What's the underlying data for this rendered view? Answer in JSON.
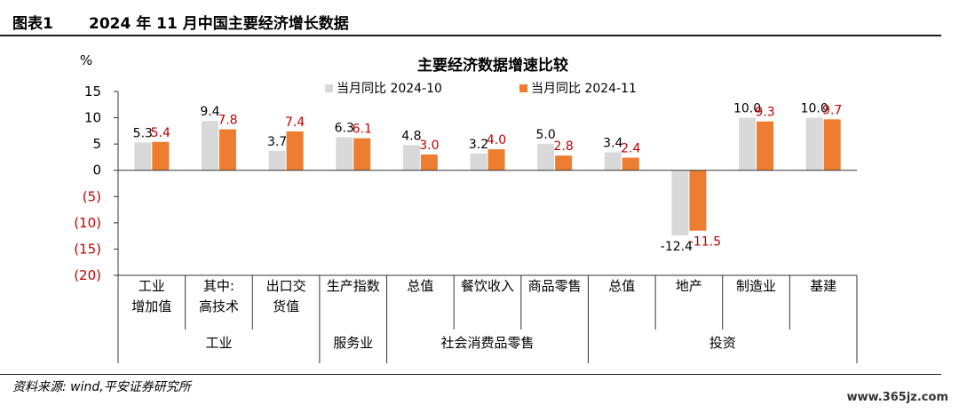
{
  "figure": {
    "label": "图表1",
    "title": "2024 年 11 月中国主要经济增长数据",
    "source": "资料来源: wind,平安证券研究所",
    "watermark": "www.365jz.com"
  },
  "chart_data": {
    "type": "bar",
    "title": "主要经济数据增速比较",
    "ylabel": "%",
    "ylim": [
      -20,
      15
    ],
    "yticks": [
      {
        "value": 15,
        "label": "15"
      },
      {
        "value": 10,
        "label": "10"
      },
      {
        "value": 5,
        "label": "5"
      },
      {
        "value": 0,
        "label": "0"
      },
      {
        "value": -5,
        "label": "(5)"
      },
      {
        "value": -10,
        "label": "(10)"
      },
      {
        "value": -15,
        "label": "(15)"
      },
      {
        "value": -20,
        "label": "(20)"
      }
    ],
    "categories": [
      "工业增加值",
      "其中:高技术",
      "出口交货值",
      "生产指数",
      "总值",
      "餐饮收入",
      "商品零售",
      "总值",
      "地产",
      "制造业",
      "基建"
    ],
    "category_lines": [
      [
        "工业",
        "增加值"
      ],
      [
        "其中:",
        "高技术"
      ],
      [
        "出口交",
        "货值"
      ],
      [
        "生产指数"
      ],
      [
        "总值"
      ],
      [
        "餐饮收入"
      ],
      [
        "商品零售"
      ],
      [
        "总值"
      ],
      [
        "地产"
      ],
      [
        "制造业"
      ],
      [
        "基建"
      ]
    ],
    "groups": [
      {
        "label": "工业",
        "start": 0,
        "end": 2
      },
      {
        "label": "服务业",
        "start": 3,
        "end": 3
      },
      {
        "label": "社会消费品零售",
        "start": 4,
        "end": 6
      },
      {
        "label": "投资",
        "start": 7,
        "end": 10
      }
    ],
    "series": [
      {
        "name": "当月同比 2024-10",
        "color": "#d9d9d9",
        "label_color": "#000000",
        "values": [
          5.3,
          9.4,
          3.7,
          6.3,
          4.8,
          3.2,
          5.0,
          3.4,
          -12.4,
          10.0,
          10.0
        ]
      },
      {
        "name": "当月同比 2024-11",
        "color": "#ed7d31",
        "label_color": "#c00000",
        "values": [
          5.4,
          7.8,
          7.4,
          6.1,
          3.0,
          4.0,
          2.8,
          2.4,
          -11.5,
          9.3,
          9.7
        ]
      }
    ],
    "value_labels": [
      [
        "5.3",
        "9.4",
        "3.7",
        "6.3",
        "4.8",
        "3.2",
        "5.0",
        "3.4",
        "-12.4",
        "10.0",
        "10.0"
      ],
      [
        "5.4",
        "7.8",
        "7.4",
        "6.1",
        "3.0",
        "4.0",
        "2.8",
        "2.4",
        "-11.5",
        "9.3",
        "9.7"
      ]
    ],
    "negative_tick_color": "#c00000",
    "legend_position": "top-center",
    "grid": false
  }
}
